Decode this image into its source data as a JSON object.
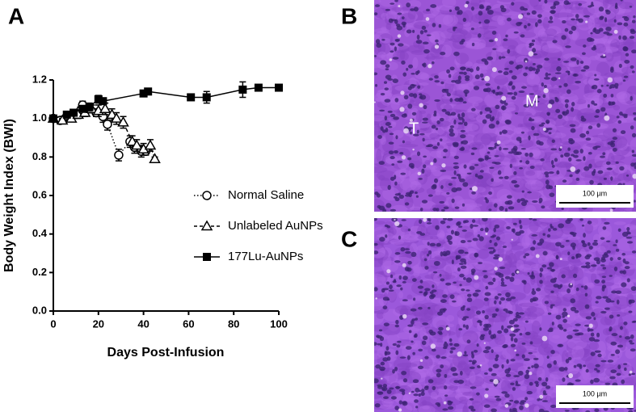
{
  "chart_data": {
    "type": "line",
    "xlabel": "Days Post-Infusion",
    "ylabel": "Body Weight Index (BWI)",
    "xlim": [
      0,
      100
    ],
    "xticks": [
      0,
      20,
      40,
      60,
      80,
      100
    ],
    "ylim": [
      0,
      1.2
    ],
    "yticks": [
      {
        "value": 0,
        "label": "0.0"
      },
      0.2,
      0.4,
      0.6,
      0.8,
      {
        "value": 1,
        "label": "1.0"
      },
      1.2
    ],
    "legend": "right",
    "series": [
      {
        "name": "Normal Saline",
        "color": "#000000",
        "marker": "circle",
        "line": "dotted",
        "x": [
          0,
          3,
          6,
          9,
          12,
          13,
          16,
          19,
          22,
          24,
          29,
          34,
          36,
          39,
          41
        ],
        "values": [
          1.0,
          0.99,
          1.01,
          1.02,
          1.04,
          1.07,
          1.05,
          1.03,
          1.01,
          0.97,
          0.81,
          0.88,
          0.85,
          0.83,
          0.83
        ],
        "errors": [
          0.01,
          0.01,
          0.01,
          0.02,
          0.02,
          0.02,
          0.02,
          0.02,
          0.03,
          0.03,
          0.03,
          0.03,
          0.03,
          0.03,
          0.02
        ]
      },
      {
        "name": "Unlabeled AuNPs",
        "color": "#000000",
        "marker": "triangle",
        "line": "dashed",
        "x": [
          0,
          4,
          8,
          11,
          14,
          17,
          20,
          23,
          26,
          28,
          31,
          35,
          37,
          40,
          43,
          45
        ],
        "values": [
          1.0,
          0.99,
          1.0,
          1.02,
          1.03,
          1.05,
          1.04,
          1.05,
          1.02,
          1.0,
          0.98,
          0.88,
          0.86,
          0.84,
          0.86,
          0.79
        ],
        "errors": [
          0.01,
          0.01,
          0.01,
          0.02,
          0.02,
          0.02,
          0.03,
          0.03,
          0.03,
          0.03,
          0.03,
          0.03,
          0.03,
          0.03,
          0.03,
          0.01
        ]
      },
      {
        "name": "177Lu-AuNPs",
        "color": "#000000",
        "marker": "square",
        "line": "solid",
        "x": [
          0,
          6,
          9,
          13,
          16,
          20,
          22,
          40,
          42,
          61,
          68,
          84,
          91,
          100
        ],
        "values": [
          1.0,
          1.02,
          1.03,
          1.05,
          1.06,
          1.1,
          1.09,
          1.13,
          1.14,
          1.11,
          1.11,
          1.15,
          1.16,
          1.16
        ],
        "errors": [
          0.01,
          0.01,
          0.01,
          0.01,
          0.02,
          0.02,
          0.01,
          0.01,
          0.01,
          0.01,
          0.03,
          0.04,
          0.01,
          0.01
        ]
      }
    ]
  },
  "panels": {
    "labels": [
      "A",
      "B",
      "C"
    ],
    "images": [
      {
        "annotations": [
          "T",
          "M"
        ],
        "scale_bar": "100 µm"
      },
      {
        "scale_bar": "100 µm"
      }
    ]
  }
}
